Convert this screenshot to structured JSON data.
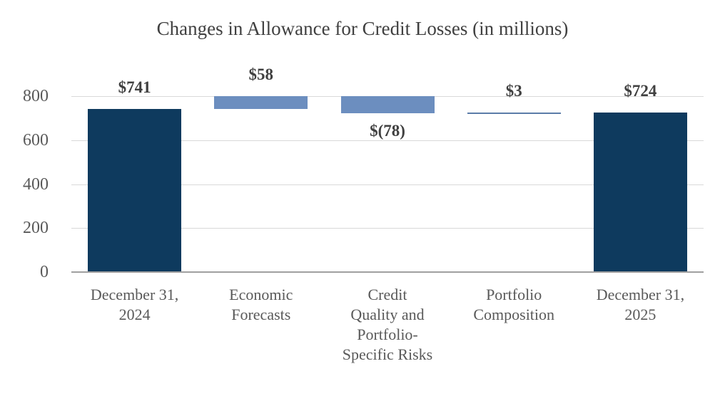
{
  "chart_data": {
    "type": "bar",
    "subtype": "waterfall",
    "title": "Changes in Allowance for Credit Losses (in millions)",
    "categories": [
      "December 31, 2024",
      "Economic Forecasts",
      "Credit Quality and Portfolio-Specific Risks",
      "Portfolio Composition",
      "December 31, 2025"
    ],
    "bars": [
      {
        "category": "December 31, 2024",
        "category_lines": [
          "December 31,",
          "2024"
        ],
        "value": 741,
        "display": "$741",
        "kind": "total"
      },
      {
        "category": "Economic Forecasts",
        "category_lines": [
          "Economic",
          "Forecasts"
        ],
        "value": 58,
        "display": "$58",
        "kind": "increase"
      },
      {
        "category": "Credit Quality and Portfolio-Specific Risks",
        "category_lines": [
          "Credit",
          "Quality and",
          "Portfolio-",
          "Specific Risks"
        ],
        "value": -78,
        "display": "$(78)",
        "kind": "decrease"
      },
      {
        "category": "Portfolio Composition",
        "category_lines": [
          "Portfolio",
          "Composition"
        ],
        "value": 3,
        "display": "$3",
        "kind": "increase"
      },
      {
        "category": "December 31, 2025",
        "category_lines": [
          "December 31,",
          "2025"
        ],
        "value": 724,
        "display": "$724",
        "kind": "total"
      }
    ],
    "running_totals": [
      741,
      799,
      721,
      724,
      724
    ],
    "yticks": [
      "0",
      "200",
      "400",
      "600",
      "800"
    ],
    "ylim": [
      0,
      850
    ],
    "grid": true,
    "legend": false,
    "xlabel": "",
    "ylabel": "",
    "colors": {
      "total_bar": "#0E3A5E",
      "delta_bar": "#6C8EBF",
      "thin_bar": "#5B7CA8",
      "gridline": "#D9D9D9",
      "axis_line": "#A0A0A0",
      "axis_text": "#595959",
      "data_label": "#404040",
      "title_text": "#404040"
    }
  }
}
